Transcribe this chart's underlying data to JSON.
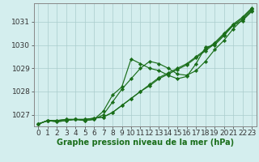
{
  "xlabel": "Graphe pression niveau de la mer (hPa)",
  "x": [
    0,
    1,
    2,
    3,
    4,
    5,
    6,
    7,
    8,
    9,
    10,
    11,
    12,
    13,
    14,
    15,
    16,
    17,
    18,
    19,
    20,
    21,
    22,
    23
  ],
  "series": [
    [
      1026.6,
      1026.75,
      1026.75,
      1026.8,
      1026.8,
      1026.8,
      1026.85,
      1026.9,
      1027.1,
      1027.4,
      1027.7,
      1028.0,
      1028.3,
      1028.6,
      1028.8,
      1029.0,
      1029.2,
      1029.5,
      1029.8,
      1030.1,
      1030.5,
      1030.9,
      1031.2,
      1031.6
    ],
    [
      1026.6,
      1026.75,
      1026.75,
      1026.8,
      1026.8,
      1026.8,
      1026.85,
      1026.9,
      1027.1,
      1027.4,
      1027.7,
      1028.0,
      1028.25,
      1028.55,
      1028.75,
      1028.95,
      1029.15,
      1029.45,
      1029.75,
      1030.05,
      1030.45,
      1030.85,
      1031.15,
      1031.55
    ],
    [
      1026.6,
      1026.75,
      1026.7,
      1026.75,
      1026.8,
      1026.75,
      1026.8,
      1027.0,
      1027.55,
      1028.1,
      1028.55,
      1029.0,
      1029.3,
      1029.2,
      1029.0,
      1028.75,
      1028.7,
      1028.9,
      1029.3,
      1029.8,
      1030.2,
      1030.7,
      1031.1,
      1031.5
    ],
    [
      1026.6,
      1026.75,
      1026.7,
      1026.75,
      1026.8,
      1026.75,
      1026.8,
      1027.15,
      1027.85,
      1028.2,
      1029.4,
      1029.2,
      1029.0,
      1028.9,
      1028.7,
      1028.55,
      1028.65,
      1029.2,
      1029.9,
      1030.0,
      1030.4,
      1030.85,
      1031.05,
      1031.45
    ]
  ],
  "line_color": "#1a6e1a",
  "marker_color": "#1a6e1a",
  "bg_color": "#d4eeee",
  "grid_color": "#aacccc",
  "axis_color": "#888888",
  "ylim": [
    1026.5,
    1031.8
  ],
  "yticks": [
    1027,
    1028,
    1029,
    1030,
    1031
  ],
  "xticks": [
    0,
    1,
    2,
    3,
    4,
    5,
    6,
    7,
    8,
    9,
    10,
    11,
    12,
    13,
    14,
    15,
    16,
    17,
    18,
    19,
    20,
    21,
    22,
    23
  ],
  "xlabel_color": "#1a6e1a",
  "xlabel_fontsize": 7,
  "tick_fontsize": 6.5,
  "linewidth": 0.85,
  "markersize": 2.2
}
